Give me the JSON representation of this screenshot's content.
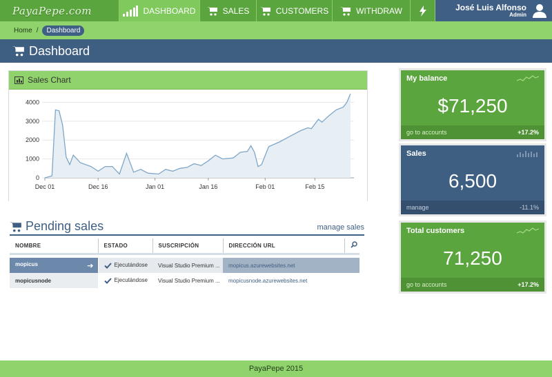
{
  "brand": "PayaPepe.com",
  "nav": {
    "dashboard": "DASHBOARD",
    "sales": "SALES",
    "customers": "CUSTOMERS",
    "withdraw": "WITHDRAW"
  },
  "user": {
    "name": "José Luis Alfonso",
    "role": "Admin"
  },
  "breadcrumb": {
    "home": "Home",
    "separator": "/",
    "current": "Dashboard"
  },
  "page_title": "Dashboard",
  "sales_chart": {
    "title": "Sales Chart",
    "chart_data": {
      "type": "area",
      "title": "Sales Chart",
      "xlabel": "",
      "ylabel": "",
      "ylim": [
        0,
        4600
      ],
      "yticks": [
        0,
        1000,
        2000,
        3000,
        4000
      ],
      "xlim": [
        "2013-12-01",
        "2014-02-26"
      ],
      "xtick_labels": [
        "Dec 01",
        "Dec 16",
        "Jan 01",
        "Jan 16",
        "Feb 01",
        "Feb 15"
      ],
      "xtick_dates": [
        "2013-12-01",
        "2013-12-16",
        "2014-01-01",
        "2014-01-16",
        "2014-02-01",
        "2014-02-15"
      ],
      "grid": true,
      "color": "#7ea6c8",
      "fill": "#e7eef4",
      "points": [
        {
          "x": "2013-12-01",
          "y": 0
        },
        {
          "x": "2013-12-03",
          "y": 100
        },
        {
          "x": "2013-12-04",
          "y": 3600
        },
        {
          "x": "2013-12-05",
          "y": 3550
        },
        {
          "x": "2013-12-06",
          "y": 2800
        },
        {
          "x": "2013-12-07",
          "y": 1100
        },
        {
          "x": "2013-12-08",
          "y": 700
        },
        {
          "x": "2013-12-09",
          "y": 1200
        },
        {
          "x": "2013-12-11",
          "y": 800
        },
        {
          "x": "2013-12-14",
          "y": 600
        },
        {
          "x": "2013-12-16",
          "y": 350
        },
        {
          "x": "2013-12-18",
          "y": 600
        },
        {
          "x": "2013-12-20",
          "y": 600
        },
        {
          "x": "2013-12-22",
          "y": 200
        },
        {
          "x": "2013-12-24",
          "y": 1300
        },
        {
          "x": "2013-12-26",
          "y": 300
        },
        {
          "x": "2013-12-28",
          "y": 450
        },
        {
          "x": "2013-12-30",
          "y": 250
        },
        {
          "x": "2014-01-02",
          "y": 200
        },
        {
          "x": "2014-01-04",
          "y": 450
        },
        {
          "x": "2014-01-06",
          "y": 350
        },
        {
          "x": "2014-01-08",
          "y": 500
        },
        {
          "x": "2014-01-10",
          "y": 550
        },
        {
          "x": "2014-01-12",
          "y": 750
        },
        {
          "x": "2014-01-14",
          "y": 650
        },
        {
          "x": "2014-01-16",
          "y": 900
        },
        {
          "x": "2014-01-18",
          "y": 1200
        },
        {
          "x": "2014-01-20",
          "y": 1000
        },
        {
          "x": "2014-01-23",
          "y": 1050
        },
        {
          "x": "2014-01-25",
          "y": 1350
        },
        {
          "x": "2014-01-27",
          "y": 1400
        },
        {
          "x": "2014-01-28",
          "y": 1700
        },
        {
          "x": "2014-01-29",
          "y": 1350
        },
        {
          "x": "2014-01-30",
          "y": 600
        },
        {
          "x": "2014-01-31",
          "y": 700
        },
        {
          "x": "2014-02-02",
          "y": 1650
        },
        {
          "x": "2014-02-05",
          "y": 1900
        },
        {
          "x": "2014-02-08",
          "y": 2200
        },
        {
          "x": "2014-02-11",
          "y": 2500
        },
        {
          "x": "2014-02-13",
          "y": 2650
        },
        {
          "x": "2014-02-14",
          "y": 2600
        },
        {
          "x": "2014-02-16",
          "y": 3100
        },
        {
          "x": "2014-02-17",
          "y": 2950
        },
        {
          "x": "2014-02-19",
          "y": 3300
        },
        {
          "x": "2014-02-21",
          "y": 3600
        },
        {
          "x": "2014-02-23",
          "y": 3750
        },
        {
          "x": "2014-02-24",
          "y": 4000
        },
        {
          "x": "2014-02-25",
          "y": 4450
        }
      ]
    }
  },
  "pending": {
    "title": "Pending sales",
    "manage_link": "manage sales",
    "columns": [
      "NOMBRE",
      "ESTADO",
      "SUSCRIPCIÓN",
      "DIRECCIÓN URL"
    ],
    "rows": [
      {
        "name": "mopicus",
        "status": "Ejecutándose",
        "subscription": "Visual Studio Premium ...",
        "url": "mopicus.azurewebsites.net"
      },
      {
        "name": "mopicusnode",
        "status": "Ejecutándose",
        "subscription": "Visual Studio Premium ...",
        "url": "mopicusnode.azurewebsites.net"
      }
    ]
  },
  "cards": {
    "balance": {
      "title": "My balance",
      "value": "$71,250",
      "link": "go to accounts",
      "change": "+17.2%"
    },
    "sales": {
      "title": "Sales",
      "value": "6,500",
      "link": "manage",
      "change": "-11.1%"
    },
    "customers": {
      "title": "Total customers",
      "value": "71,250",
      "link": "go to accounts",
      "change": "+17.2%"
    }
  },
  "footer": "PayaPepe 2015"
}
